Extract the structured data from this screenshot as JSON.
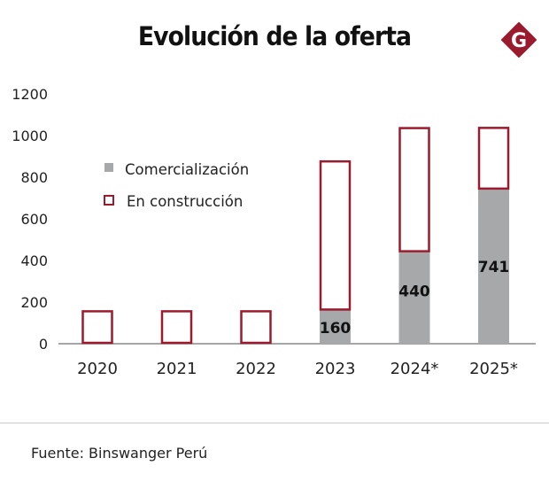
{
  "header": {
    "title": "Evolución de la oferta",
    "logo_letter": "G"
  },
  "footer": {
    "source": "Fuente: Binswanger Perú"
  },
  "colors": {
    "construction": "#9b1b2e",
    "commercialization": "#a7a8aa",
    "axis": "#888888"
  },
  "chart_data": {
    "type": "bar",
    "stacked": true,
    "title": "Evolución de la oferta",
    "categories": [
      "2020",
      "2021",
      "2022",
      "2023",
      "2024*",
      "2025*"
    ],
    "series": [
      {
        "name": "Comercialización",
        "style": "filled-grey",
        "values": [
          0,
          0,
          0,
          160,
          440,
          741
        ],
        "labels": [
          "",
          "",
          "",
          "160",
          "440",
          "741"
        ]
      },
      {
        "name": "En construcción",
        "style": "outlined-red",
        "values": [
          160,
          160,
          160,
          720,
          600,
          300
        ]
      }
    ],
    "yticks": [
      0,
      200,
      400,
      600,
      800,
      1000,
      1200
    ],
    "ylim": [
      0,
      1200
    ],
    "xlabel": "",
    "ylabel": "",
    "grid": false,
    "legend": {
      "position": "top-left",
      "entries": [
        "Comercialización",
        "En construcción"
      ]
    }
  }
}
